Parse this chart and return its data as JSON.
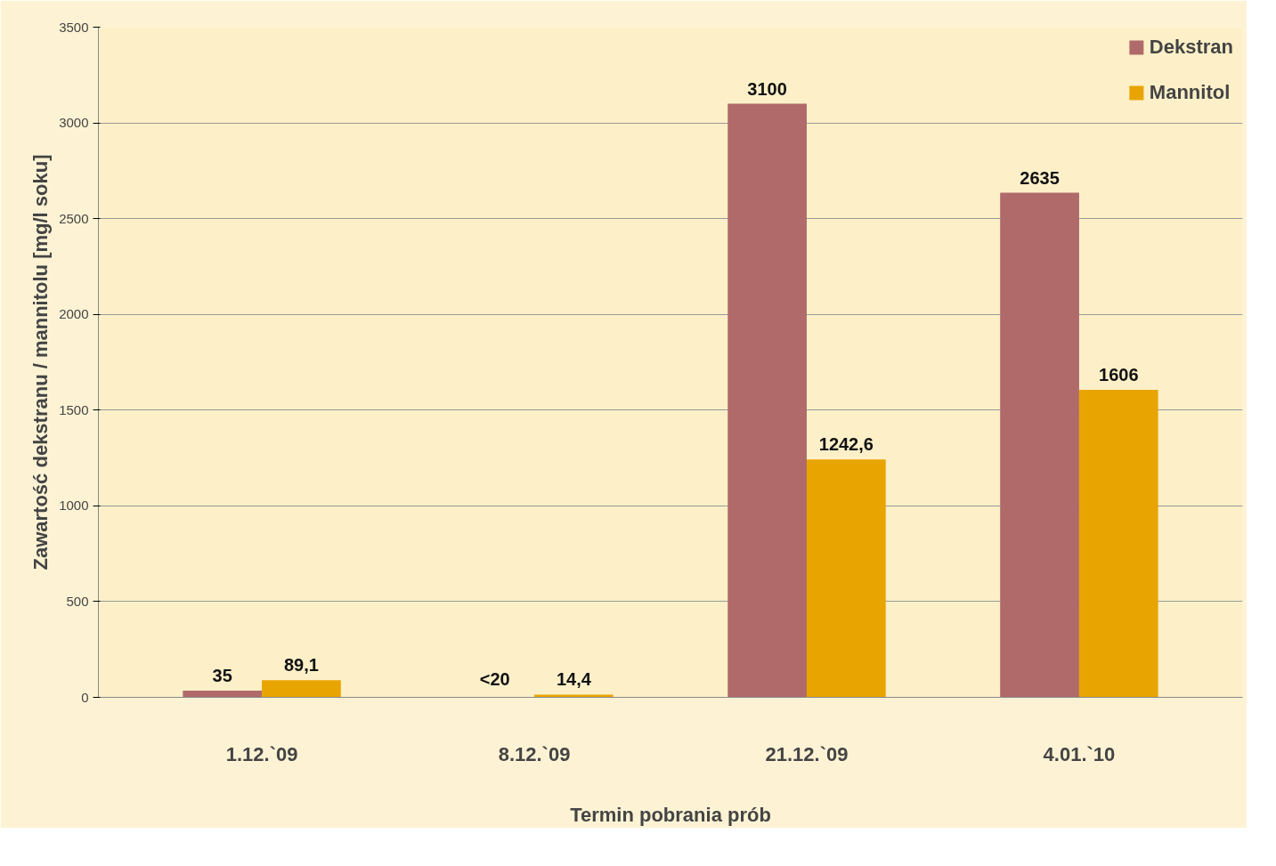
{
  "chart_data": {
    "type": "bar",
    "xlabel": "Termin pobrania prób",
    "ylabel": "Zawartość dekstranu / mannitolu [mg/l soku]",
    "categories": [
      "1.12.`09",
      "8.12.`09",
      "21.12.`09",
      "4.01.`10"
    ],
    "series": [
      {
        "name": "Dekstran",
        "color": "#b06a6a",
        "values": [
          35,
          null,
          3100,
          2635
        ],
        "value_labels": [
          "35",
          "<20",
          "3100",
          "2635"
        ]
      },
      {
        "name": "Mannitol",
        "color": "#e8a400",
        "values": [
          89.1,
          14.4,
          1242.6,
          1606
        ],
        "value_labels": [
          "89,1",
          "14,4",
          "1242,6",
          "1606"
        ]
      }
    ],
    "ylim": [
      0,
      3500
    ],
    "yticks": [
      0,
      500,
      1000,
      1500,
      2000,
      2500,
      3000,
      3500
    ],
    "grid": "y",
    "legend": "top right"
  }
}
